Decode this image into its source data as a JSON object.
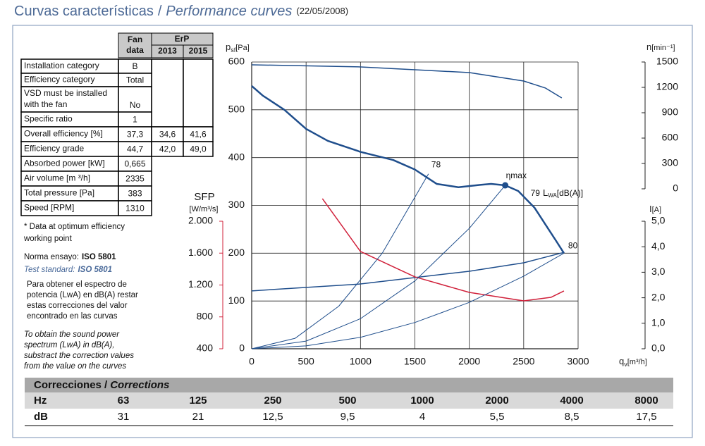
{
  "header": {
    "title": "Curvas características",
    "separator": "/",
    "subtitle": "Performance curves",
    "date": "(22/05/2008)"
  },
  "spec_table": {
    "header": {
      "fan": [
        "Fan",
        "data"
      ],
      "erp": "ErP",
      "y2013": "2013",
      "y2015": "2015"
    },
    "rows": [
      [
        [
          "Installation category"
        ],
        "B",
        null,
        null
      ],
      [
        [
          "Efficiency category"
        ],
        "Total",
        null,
        null
      ],
      [
        [
          "VSD must be installed",
          "with the fan"
        ],
        "No",
        null,
        null
      ],
      [
        [
          "Specific ratio"
        ],
        "1",
        null,
        null
      ],
      [
        [
          "Overall efficiency [%]"
        ],
        "37,3",
        "34,6",
        "41,6"
      ],
      [
        [
          "Efficiency grade"
        ],
        "44,7",
        "42,0",
        "49,0"
      ],
      [
        [
          "Absorbed power [kW]"
        ],
        "0,665"
      ],
      [
        [
          "Air volume [m ³/h]"
        ],
        "2335"
      ],
      [
        [
          "Total pressure [Pa]"
        ],
        "383"
      ],
      [
        [
          "Speed [RPM]"
        ],
        "1310"
      ]
    ]
  },
  "notes": {
    "optimum": [
      "* Data at optimum efficiency",
      "working point"
    ],
    "norma_label": "Norma ensayo:",
    "norma_value": "ISO 5801",
    "test_label": "Test standard:",
    "test_value": "ISO 5801",
    "para_es": [
      "Para obtener el espectro de",
      "potencia (LwA) en dB(A) restar",
      "estas correcciones del valor",
      "encontrado en las curvas"
    ],
    "para_en": [
      "To obtain the sound power",
      "spectrum (LwA) in dB(A),",
      "substract the correction values",
      "from the value on the curves"
    ]
  },
  "chart_data": {
    "type": "line",
    "xlabel": {
      "main": "q",
      "sub": "v",
      "unit": "[m³/h]"
    },
    "ylabel": {
      "main": "p",
      "sub": "sf",
      "unit": "[Pa]"
    },
    "nlabel": {
      "main": "n",
      "unit": "[min⁻¹]"
    },
    "ilabel": {
      "main": "I",
      "unit": "[A]"
    },
    "sfplabel": {
      "main": "SFP",
      "unit": "[W/m³/s]"
    },
    "xlim": [
      0,
      3000
    ],
    "xticks": [
      0,
      500,
      1000,
      1500,
      2000,
      2500,
      3000
    ],
    "ylim": [
      0,
      600
    ],
    "yticks": [
      0,
      100,
      200,
      300,
      400,
      500,
      600
    ],
    "nlim": [
      0,
      1500
    ],
    "nticks": [
      0,
      300,
      600,
      900,
      1200,
      1500
    ],
    "ilim": [
      0,
      5
    ],
    "iticks": [
      {
        "value": 0,
        "label": "0,0"
      },
      {
        "value": 1,
        "label": "1,0"
      },
      {
        "value": 2,
        "label": "2,0"
      },
      {
        "value": 3,
        "label": "3,0"
      },
      {
        "value": 4,
        "label": "4,0"
      },
      {
        "value": 5,
        "label": "5,0"
      }
    ],
    "sfplim": [
      400,
      2000
    ],
    "sfpticks": [
      400,
      800,
      {
        "value": 1200,
        "label": "1.200"
      },
      {
        "value": 1600,
        "label": "1.600"
      },
      {
        "value": 2000,
        "label": "2.000"
      }
    ],
    "sfp_color": "#d0203a",
    "grid": true,
    "series": [
      {
        "axis": "y",
        "color": "#1f4e8c",
        "width": 2.5,
        "x": [
          0,
          100,
          300,
          500,
          700,
          1000,
          1300,
          1500,
          1700,
          1900,
          2100,
          2200,
          2330,
          2450,
          2600,
          2700,
          2800,
          2870
        ],
        "values": [
          550,
          530,
          500,
          460,
          435,
          412,
          395,
          375,
          345,
          338,
          343,
          345,
          342,
          330,
          295,
          260,
          225,
          200
        ]
      },
      {
        "axis": "n",
        "color": "#1f4e8c",
        "width": 1.5,
        "x": [
          0,
          1000,
          1500,
          2000,
          2500,
          2700,
          2850
        ],
        "values": [
          1467,
          1442,
          1408,
          1375,
          1275,
          1192,
          1075
        ]
      },
      {
        "axis": "i",
        "color": "#1f4e8c",
        "width": 1.5,
        "x": [
          0,
          1000,
          2000,
          2500,
          2870
        ],
        "values": [
          2.27,
          2.54,
          3.04,
          3.37,
          3.78
        ]
      },
      {
        "axis": "sfp",
        "color": "#d0203a",
        "width": 1.5,
        "x": [
          650,
          1000,
          1500,
          2000,
          2500,
          2750,
          2870
        ],
        "values": [
          2283,
          1620,
          1302,
          1107,
          1001,
          1045,
          1125
        ]
      },
      {
        "axis": "y",
        "color": "#1f4e8c",
        "width": 1,
        "label": "78",
        "x": [
          0,
          400,
          800,
          1200,
          1625
        ],
        "values": [
          0,
          22,
          89,
          200,
          366
        ]
      },
      {
        "axis": "y",
        "color": "#1f4e8c",
        "width": 1,
        "label": "79",
        "x": [
          0,
          500,
          1000,
          1500,
          2000,
          2330
        ],
        "values": [
          0,
          16,
          63,
          142,
          252,
          342
        ]
      },
      {
        "axis": "y",
        "color": "#1f4e8c",
        "width": 1,
        "label": "80",
        "x": [
          0,
          500,
          1000,
          1500,
          2000,
          2500,
          2870
        ],
        "values": [
          0,
          6,
          24,
          55,
          97,
          152,
          200
        ]
      }
    ],
    "lwa_label": {
      "main": "L",
      "sub": "WA",
      "unit": "[dB(A)]"
    },
    "eta_max": {
      "label": "ηmax",
      "x": 2330,
      "y": 342
    }
  },
  "corrections": {
    "title": "Correcciones /",
    "title_en": "Corrections",
    "hz_label": "Hz",
    "hz": [
      "63",
      "125",
      "250",
      "500",
      "1000",
      "2000",
      "4000",
      "8000"
    ],
    "db_label": "dB",
    "db": [
      "31",
      "21",
      "12,5",
      "9,5",
      "4",
      "5,5",
      "8,5",
      "17,5"
    ]
  }
}
